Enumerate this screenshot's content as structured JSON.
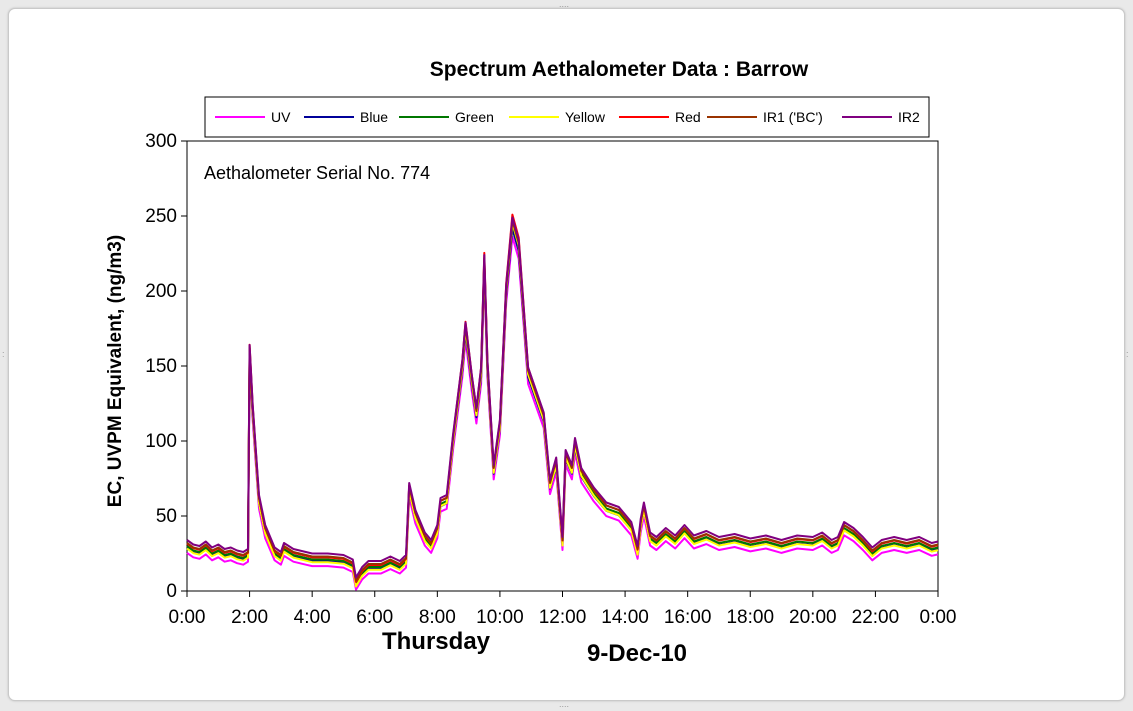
{
  "chart_data": {
    "type": "line",
    "title": "Spectrum Aethalometer Data  :  Barrow",
    "annotation": "Aethalometer  Serial No. 774",
    "ylabel": "EC, UVPM Equivalent, (ng/m3)",
    "day_label": "Thursday",
    "date_label": "9-Dec-10",
    "ylim": [
      0,
      300
    ],
    "xlim": [
      0,
      24
    ],
    "yticks": [
      "0",
      "50",
      "100",
      "150",
      "200",
      "250",
      "300"
    ],
    "xticks": [
      "0:00",
      "2:00",
      "4:00",
      "6:00",
      "8:00",
      "10:00",
      "12:00",
      "14:00",
      "16:00",
      "18:00",
      "20:00",
      "22:00",
      "0:00"
    ],
    "grid": false,
    "legend_position": "top",
    "series": [
      {
        "name": "UV",
        "color": "#ff00ff",
        "offset": -4,
        "scale": 0.98
      },
      {
        "name": "Blue",
        "color": "#000099",
        "offset": -1,
        "scale": 0.99
      },
      {
        "name": "Green",
        "color": "#007700",
        "offset": 0,
        "scale": 1.0
      },
      {
        "name": "Yellow",
        "color": "#ffff00",
        "offset": -2,
        "scale": 1.01
      },
      {
        "name": "Red",
        "color": "#ff0000",
        "offset": 1,
        "scale": 1.02
      },
      {
        "name": "IR1 ('BC')",
        "color": "#993300",
        "offset": 2,
        "scale": 1.0
      },
      {
        "name": "IR2",
        "color": "#800080",
        "offset": 4,
        "scale": 1.0
      }
    ],
    "base_profile": [
      [
        0.0,
        30
      ],
      [
        0.2,
        27
      ],
      [
        0.4,
        26
      ],
      [
        0.6,
        29
      ],
      [
        0.8,
        25
      ],
      [
        1.0,
        27
      ],
      [
        1.2,
        24
      ],
      [
        1.4,
        25
      ],
      [
        1.6,
        23
      ],
      [
        1.8,
        22
      ],
      [
        1.95,
        24
      ],
      [
        2.0,
        160
      ],
      [
        2.1,
        120
      ],
      [
        2.3,
        60
      ],
      [
        2.5,
        40
      ],
      [
        2.8,
        25
      ],
      [
        3.0,
        22
      ],
      [
        3.1,
        28
      ],
      [
        3.4,
        24
      ],
      [
        3.8,
        22
      ],
      [
        4.0,
        21
      ],
      [
        4.5,
        21
      ],
      [
        5.0,
        20
      ],
      [
        5.3,
        17
      ],
      [
        5.4,
        5
      ],
      [
        5.6,
        12
      ],
      [
        5.8,
        16
      ],
      [
        6.2,
        16
      ],
      [
        6.5,
        19
      ],
      [
        6.8,
        16
      ],
      [
        7.0,
        20
      ],
      [
        7.1,
        68
      ],
      [
        7.3,
        50
      ],
      [
        7.6,
        35
      ],
      [
        7.8,
        30
      ],
      [
        8.0,
        40
      ],
      [
        8.1,
        58
      ],
      [
        8.3,
        60
      ],
      [
        8.5,
        100
      ],
      [
        8.8,
        150
      ],
      [
        8.9,
        175
      ],
      [
        9.1,
        140
      ],
      [
        9.25,
        118
      ],
      [
        9.4,
        145
      ],
      [
        9.5,
        220
      ],
      [
        9.6,
        150
      ],
      [
        9.8,
        80
      ],
      [
        10.0,
        110
      ],
      [
        10.2,
        200
      ],
      [
        10.4,
        245
      ],
      [
        10.6,
        230
      ],
      [
        10.9,
        145
      ],
      [
        11.4,
        115
      ],
      [
        11.6,
        70
      ],
      [
        11.8,
        85
      ],
      [
        12.0,
        32
      ],
      [
        12.1,
        90
      ],
      [
        12.3,
        80
      ],
      [
        12.4,
        98
      ],
      [
        12.6,
        78
      ],
      [
        13.0,
        65
      ],
      [
        13.4,
        55
      ],
      [
        13.8,
        52
      ],
      [
        14.2,
        42
      ],
      [
        14.4,
        26
      ],
      [
        14.5,
        44
      ],
      [
        14.6,
        55
      ],
      [
        14.8,
        35
      ],
      [
        15.0,
        32
      ],
      [
        15.3,
        38
      ],
      [
        15.6,
        33
      ],
      [
        15.9,
        40
      ],
      [
        16.2,
        33
      ],
      [
        16.6,
        36
      ],
      [
        17.0,
        32
      ],
      [
        17.5,
        34
      ],
      [
        18.0,
        31
      ],
      [
        18.5,
        33
      ],
      [
        19.0,
        30
      ],
      [
        19.5,
        33
      ],
      [
        20.0,
        32
      ],
      [
        20.3,
        35
      ],
      [
        20.6,
        30
      ],
      [
        20.8,
        32
      ],
      [
        21.0,
        42
      ],
      [
        21.3,
        38
      ],
      [
        21.6,
        32
      ],
      [
        21.9,
        25
      ],
      [
        22.2,
        30
      ],
      [
        22.6,
        32
      ],
      [
        23.0,
        30
      ],
      [
        23.4,
        32
      ],
      [
        23.8,
        28
      ],
      [
        24.0,
        29
      ]
    ]
  }
}
